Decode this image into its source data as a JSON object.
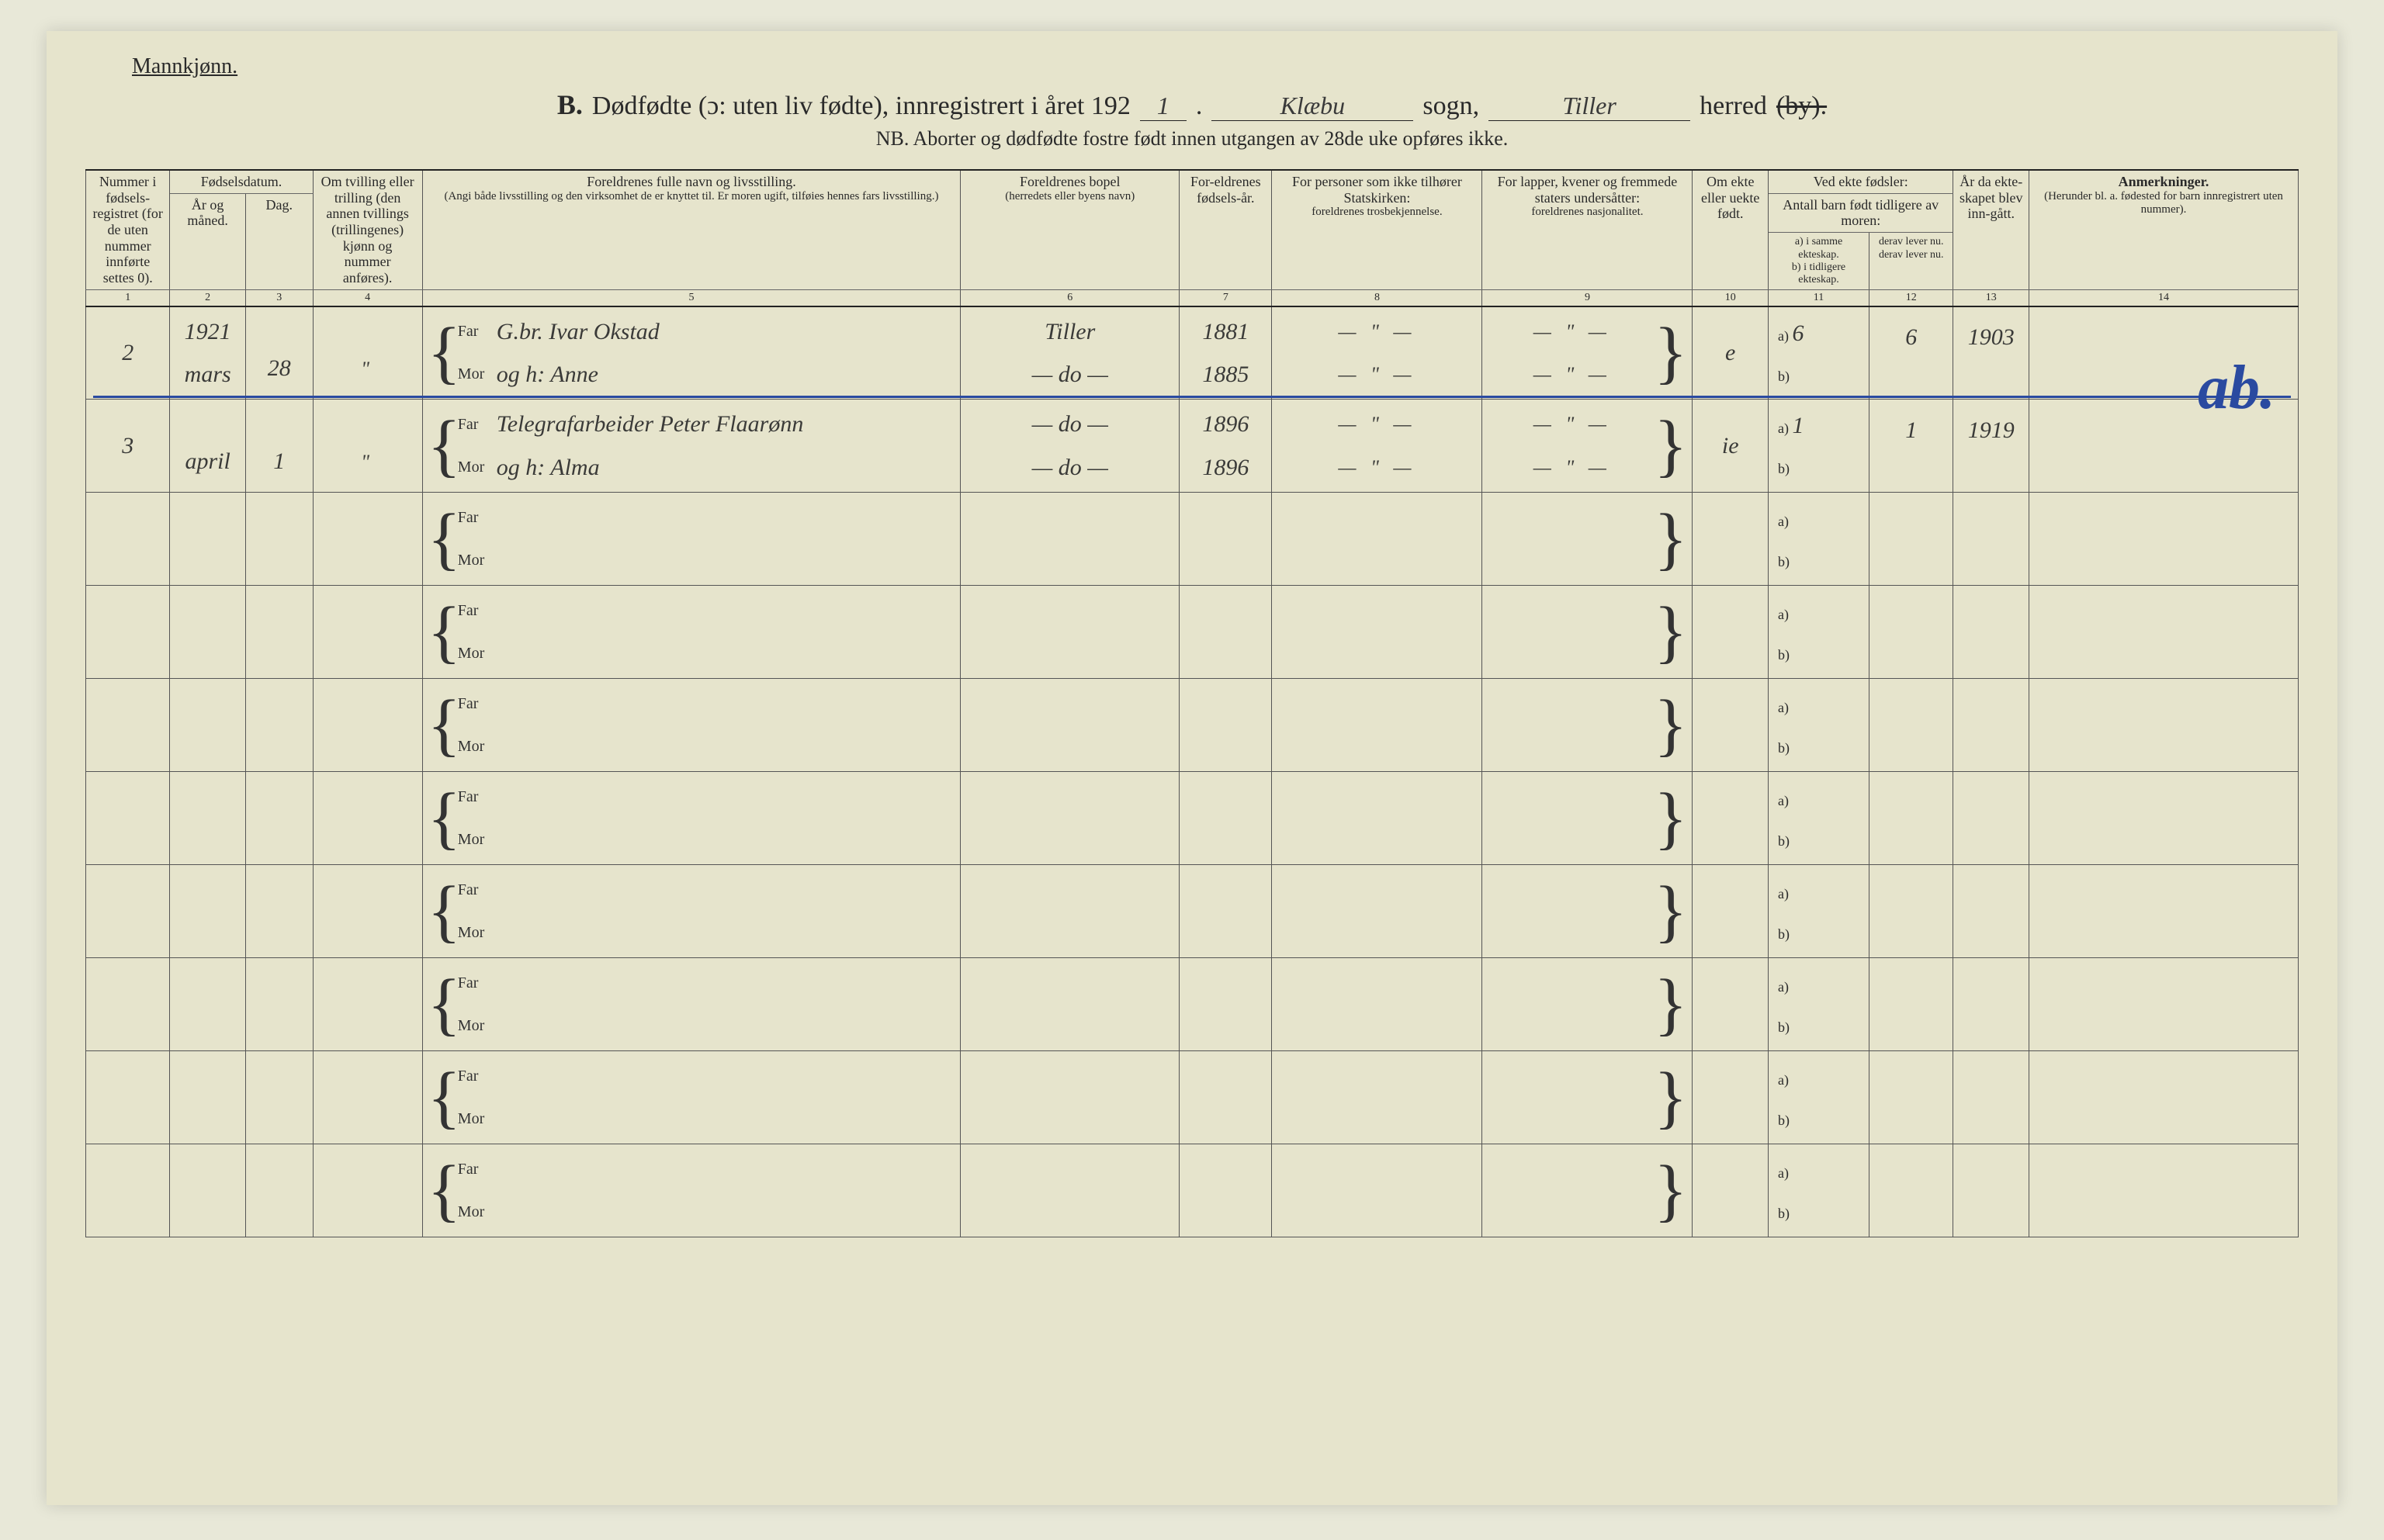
{
  "header": {
    "gender_label": "Mannkjønn.",
    "section_letter": "B.",
    "title_main": "Dødfødte (ɔ: uten liv fødte), innregistrert i året 192",
    "year_suffix": "1",
    "sogn_value": "Klæbu",
    "sogn_label": "sogn,",
    "herred_value": "Tiller",
    "herred_label": "herred",
    "by_strike": "(by).",
    "subtitle": "NB. Aborter og dødfødte fostre født innen utgangen av 28de uke opføres ikke."
  },
  "columns": {
    "c1": "Nummer i fødsels-registret (for de uten nummer innførte settes 0).",
    "c2_group": "Fødselsdatum.",
    "c2": "År og måned.",
    "c3": "Dag.",
    "c4": "Om tvilling eller trilling (den annen tvillings (trillingenes) kjønn og nummer anføres).",
    "c5_title": "Foreldrenes fulle navn og livsstilling.",
    "c5_sub": "(Angi både livsstilling og den virksomhet de er knyttet til. Er moren ugift, tilføies hennes fars livsstilling.)",
    "c6": "Foreldrenes bopel",
    "c6_sub": "(herredets eller byens navn)",
    "c7": "For-eldrenes fødsels-år.",
    "c8_title": "For personer som ikke tilhører Statskirken:",
    "c8_sub": "foreldrenes trosbekjennelse.",
    "c9_title": "For lapper, kvener og fremmede staters undersåtter:",
    "c9_sub": "foreldrenes nasjonalitet.",
    "c10": "Om ekte eller uekte født.",
    "c11_12_top": "Ved ekte fødsler:",
    "c11_12_sub": "Antall barn født tidligere av moren:",
    "c11": "a) i samme ekteskap.\nb) i tidligere ekteskap.",
    "c12": "derav lever nu.\nderav lever nu.",
    "c13": "År da ekte-skapet blev inn-gått.",
    "c14_title": "Anmerkninger.",
    "c14_sub": "(Herunder bl. a. fødested for barn innregistrert uten nummer).",
    "far_label": "Far",
    "mor_label": "Mor",
    "ab_a": "a)",
    "ab_b": "b)"
  },
  "colnums": [
    "1",
    "2",
    "3",
    "4",
    "5",
    "6",
    "7",
    "8",
    "9",
    "10",
    "11",
    "12",
    "13",
    "14"
  ],
  "rows": [
    {
      "num": "2",
      "year_month_top": "1921",
      "year_month": "mars",
      "day": "28",
      "twin": "\"",
      "far": "G.br. Ivar Okstad",
      "mor": "og h: Anne",
      "bopel_far": "Tiller",
      "bopel_mor": "— do —",
      "fyear_far": "1881",
      "fyear_mor": "1885",
      "stats_far": "— \" —",
      "stats_mor": "— \" —",
      "lapp_far": "— \" —",
      "lapp_mor": "— \" —",
      "ekte": "e",
      "c11_a": "6",
      "c12_a": "6",
      "c13": "1903",
      "anm": ""
    },
    {
      "num": "3",
      "year_month": "april",
      "day": "1",
      "twin": "\"",
      "far": "Telegrafarbeider Peter Flaarønn",
      "mor": "og h: Alma",
      "bopel_far": "— do —",
      "bopel_mor": "— do —",
      "fyear_far": "1896",
      "fyear_mor": "1896",
      "stats_far": "— \" —",
      "stats_mor": "— \" —",
      "lapp_far": "— \" —",
      "lapp_mor": "— \" —",
      "ekte": "ie",
      "c11_a": "1",
      "c12_a": "1",
      "c13": "1919",
      "anm": ""
    },
    {},
    {},
    {},
    {},
    {},
    {},
    {},
    {}
  ],
  "annotation": {
    "blue_mark": "ab."
  },
  "style": {
    "paper_bg": "#e6e4cc",
    "ink": "#2a2a2a",
    "hand_ink": "#3a3a38",
    "blue_ink": "#2a4aa0",
    "rule": "#555555"
  }
}
